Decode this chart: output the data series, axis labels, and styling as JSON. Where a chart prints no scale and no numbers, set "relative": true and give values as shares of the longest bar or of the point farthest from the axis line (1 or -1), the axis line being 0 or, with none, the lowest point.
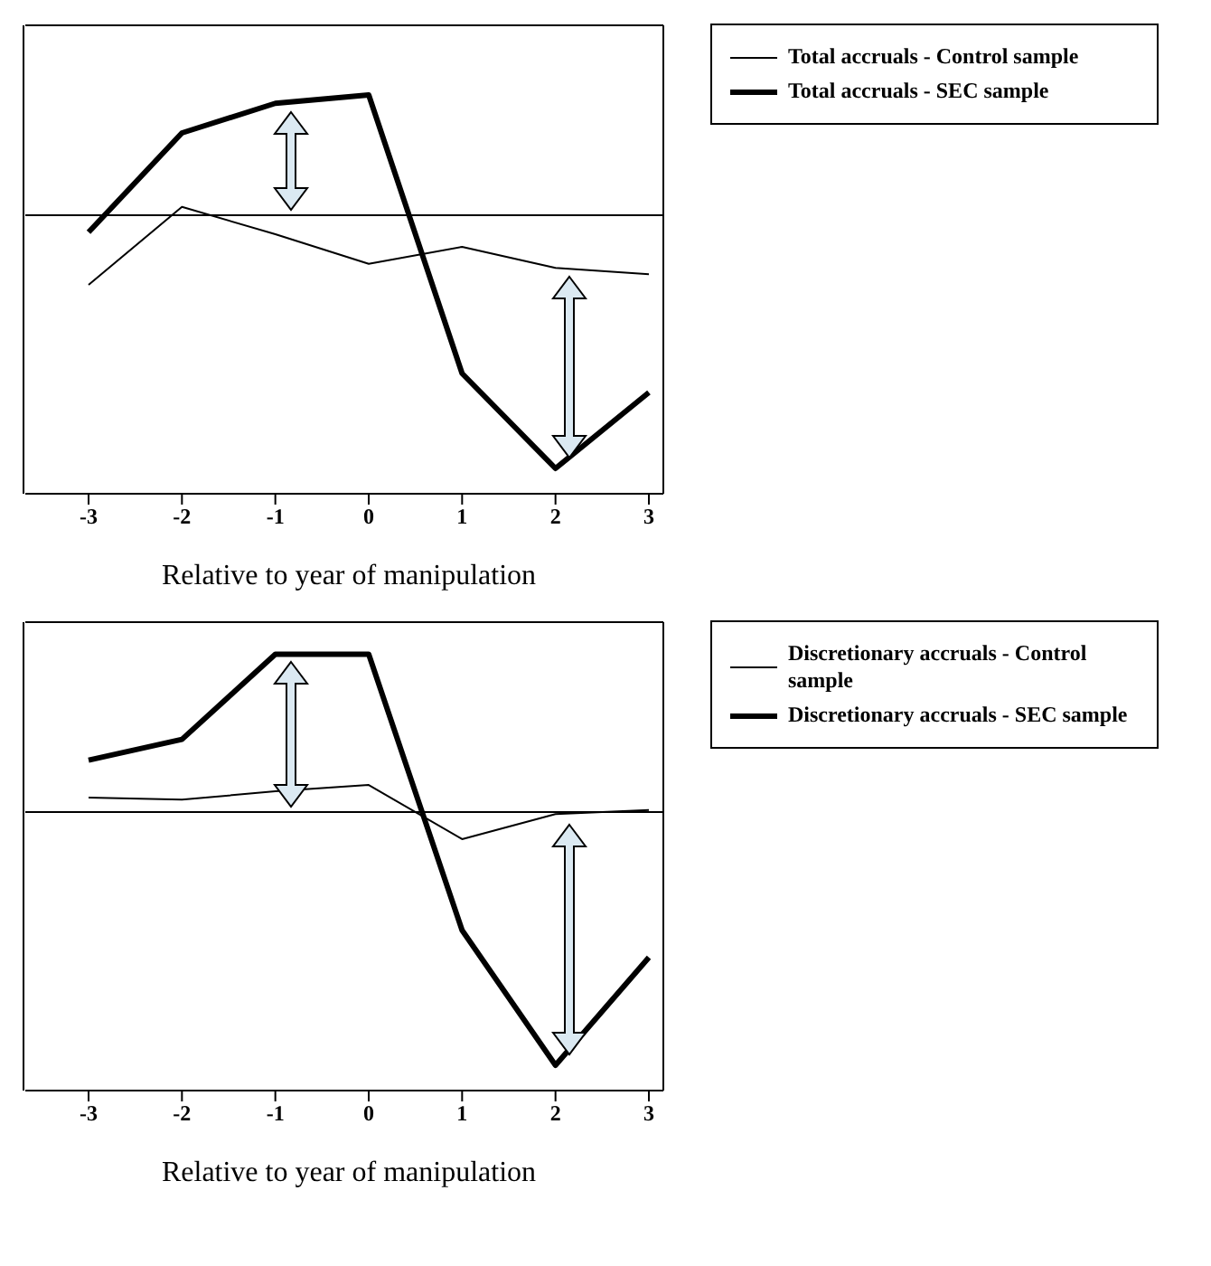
{
  "chart_data": [
    {
      "type": "line",
      "relative": true,
      "xlabel": "Relative to year of manipulation",
      "categories": [
        "-3",
        "-2",
        "-1",
        "0",
        "1",
        "2",
        "3"
      ],
      "legend": "top right",
      "series": [
        {
          "name": "Total accruals - Control sample",
          "color": "#000000",
          "values": [
            -0.275,
            0.033,
            -0.075,
            -0.192,
            -0.125,
            -0.208,
            -0.233
          ]
        },
        {
          "name": "Total accruals - SEC sample",
          "color": "#000000",
          "values": [
            -0.067,
            0.325,
            0.442,
            0.475,
            -0.625,
            -1,
            -0.7
          ]
        }
      ]
    },
    {
      "type": "line",
      "relative": true,
      "xlabel": "Relative to year of manipulation",
      "categories": [
        "-3",
        "-2",
        "-1",
        "0",
        "1",
        "2",
        "3"
      ],
      "legend": "top right",
      "series": [
        {
          "name": "Discretionary accruals - Control sample",
          "color": "#000000",
          "values": [
            0.057,
            0.049,
            0.082,
            0.107,
            -0.107,
            -0.008,
            0.008
          ]
        },
        {
          "name": "Discretionary accruals - SEC sample",
          "color": "#000000",
          "values": [
            0.205,
            0.287,
            0.623,
            0.623,
            -0.467,
            -1,
            -0.574
          ]
        }
      ]
    }
  ]
}
